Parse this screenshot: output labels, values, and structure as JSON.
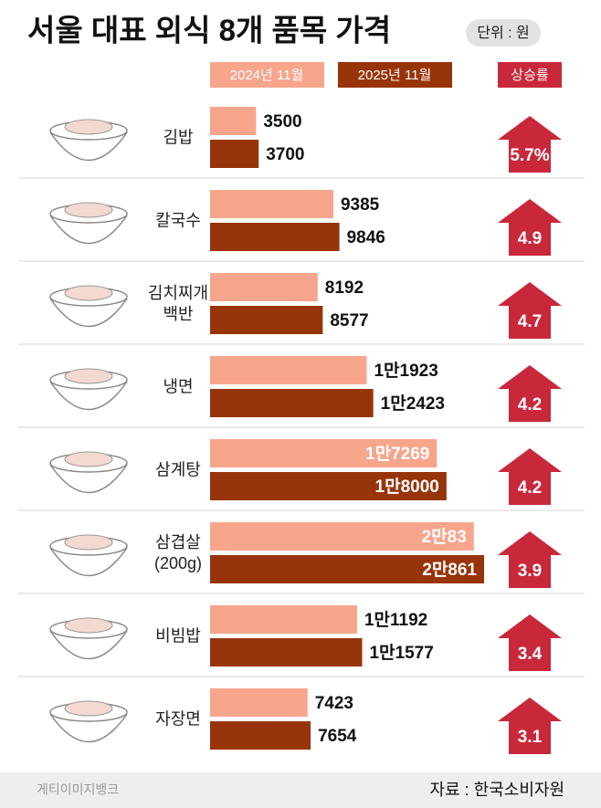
{
  "chart_data": {
    "type": "bar",
    "title": "서울 대표 외식 8개 품목 가격",
    "unit": "단위 : 원",
    "categories": [
      "김밥",
      "칼국수",
      "김치찌개 백반",
      "냉면",
      "삼계탕",
      "삼겹살 (200g)",
      "비빔밥",
      "자장면"
    ],
    "series": [
      {
        "name": "2024년 11월",
        "color": "#f7a58b",
        "values": [
          3500,
          9385,
          8192,
          11923,
          17269,
          20083,
          11192,
          7423
        ],
        "value_labels": [
          "3500",
          "9385",
          "8192",
          "1만1923",
          "1만7269",
          "2만83",
          "1만1192",
          "7423"
        ]
      },
      {
        "name": "2025년 11월",
        "color": "#983409",
        "values": [
          3700,
          9846,
          8577,
          12423,
          18000,
          20861,
          11577,
          7654
        ],
        "value_labels": [
          "3700",
          "9846",
          "8577",
          "1만2423",
          "1만8000",
          "2만861",
          "1만1577",
          "7654"
        ]
      }
    ],
    "increase": {
      "name": "상승률",
      "color": "#c9283a",
      "values": [
        5.7,
        4.9,
        4.7,
        4.2,
        4.2,
        3.9,
        3.4,
        3.1
      ],
      "value_labels": [
        "5.7%",
        "4.9",
        "4.7",
        "4.2",
        "4.2",
        "3.9",
        "3.4",
        "3.1"
      ]
    },
    "credit": "게티이미지뱅크",
    "source": "자료 : 한국소비자원"
  }
}
